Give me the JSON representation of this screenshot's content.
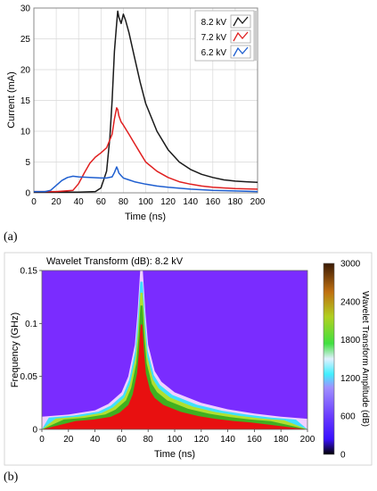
{
  "panels": {
    "a": "(a)",
    "b": "(b)"
  },
  "colors": {
    "black_series": "#1a1a1a",
    "red_series": "#e02020",
    "blue_series": "#1f5fd0",
    "grid": "#d8d8d8",
    "heatmap_bg": "#7a2cff",
    "heatmap_core": "#e81010"
  },
  "chart_data": [
    {
      "type": "line",
      "title": "",
      "xlabel": "Time (ns)",
      "ylabel": "Current (mA)",
      "xlim": [
        0,
        200
      ],
      "ylim": [
        0,
        30
      ],
      "xticks": [
        0,
        20,
        40,
        60,
        80,
        100,
        120,
        140,
        160,
        180,
        200
      ],
      "yticks": [
        0,
        5,
        10,
        15,
        20,
        25,
        30
      ],
      "grid": true,
      "legend_position": "top-right",
      "series": [
        {
          "name": "8.2 kV",
          "color": "#1a1a1a",
          "x": [
            0,
            20,
            40,
            55,
            60,
            65,
            68,
            70,
            72,
            74,
            75,
            76,
            78,
            80,
            82,
            85,
            90,
            95,
            100,
            110,
            120,
            130,
            140,
            150,
            160,
            170,
            180,
            190,
            200
          ],
          "y": [
            0.1,
            0.1,
            0.1,
            0.2,
            0.8,
            3.5,
            9,
            15,
            23,
            27.5,
            29.5,
            28.5,
            27.5,
            29,
            28,
            26,
            22,
            18,
            14.5,
            10,
            7,
            5,
            3.8,
            3,
            2.5,
            2.1,
            1.9,
            1.8,
            1.7
          ]
        },
        {
          "name": "7.2 kV",
          "color": "#e02020",
          "x": [
            0,
            20,
            35,
            40,
            45,
            50,
            55,
            60,
            65,
            70,
            72,
            74,
            75,
            76,
            78,
            80,
            85,
            90,
            95,
            100,
            110,
            120,
            130,
            140,
            150,
            160,
            180,
            200
          ],
          "y": [
            0.2,
            0.2,
            0.4,
            1.5,
            3.2,
            4.8,
            5.8,
            6.5,
            7.3,
            9.5,
            12,
            13.8,
            13.5,
            12.5,
            11.5,
            11,
            9.5,
            8,
            6.5,
            5,
            3.5,
            2.5,
            1.8,
            1.4,
            1.1,
            0.9,
            0.7,
            0.6
          ]
        },
        {
          "name": "6.2 kV",
          "color": "#1f5fd0",
          "x": [
            0,
            10,
            15,
            20,
            25,
            30,
            35,
            40,
            50,
            60,
            65,
            70,
            72,
            74,
            75,
            76,
            78,
            80,
            85,
            90,
            100,
            110,
            120,
            140,
            160,
            180,
            200
          ],
          "y": [
            0.2,
            0.2,
            0.4,
            1.2,
            2.0,
            2.5,
            2.7,
            2.6,
            2.5,
            2.4,
            2.4,
            2.6,
            3.3,
            4.2,
            3.8,
            3.2,
            2.8,
            2.4,
            2.1,
            1.8,
            1.4,
            1.1,
            0.9,
            0.6,
            0.4,
            0.3,
            0.2
          ]
        }
      ]
    },
    {
      "type": "heatmap",
      "title": "Wavelet Transform (dB):  8.2 kV",
      "xlabel": "Time (ns)",
      "ylabel": "Frequency (GHz)",
      "xlim": [
        0,
        200
      ],
      "ylim": [
        0,
        0.15
      ],
      "xticks": [
        0,
        20,
        40,
        60,
        80,
        100,
        120,
        140,
        160,
        180,
        200
      ],
      "yticks": [
        0,
        0.05,
        0.1,
        0.15
      ],
      "ytick_labels": [
        "0",
        "0.05",
        "0.1",
        "0.15"
      ],
      "colorbar": {
        "label": "Wavelet Transform Amplitude (dB)",
        "range": [
          0,
          3000
        ],
        "ticks": [
          0,
          600,
          1200,
          1800,
          2400,
          3000
        ]
      },
      "energy_ridge": {
        "x": [
          0,
          20,
          40,
          50,
          60,
          65,
          70,
          72,
          74,
          76,
          78,
          80,
          85,
          90,
          100,
          120,
          140,
          160,
          180,
          200
        ],
        "y": [
          0.012,
          0.014,
          0.018,
          0.024,
          0.035,
          0.05,
          0.08,
          0.11,
          0.15,
          0.15,
          0.11,
          0.08,
          0.055,
          0.045,
          0.035,
          0.025,
          0.019,
          0.015,
          0.012,
          0.01
        ]
      }
    }
  ]
}
